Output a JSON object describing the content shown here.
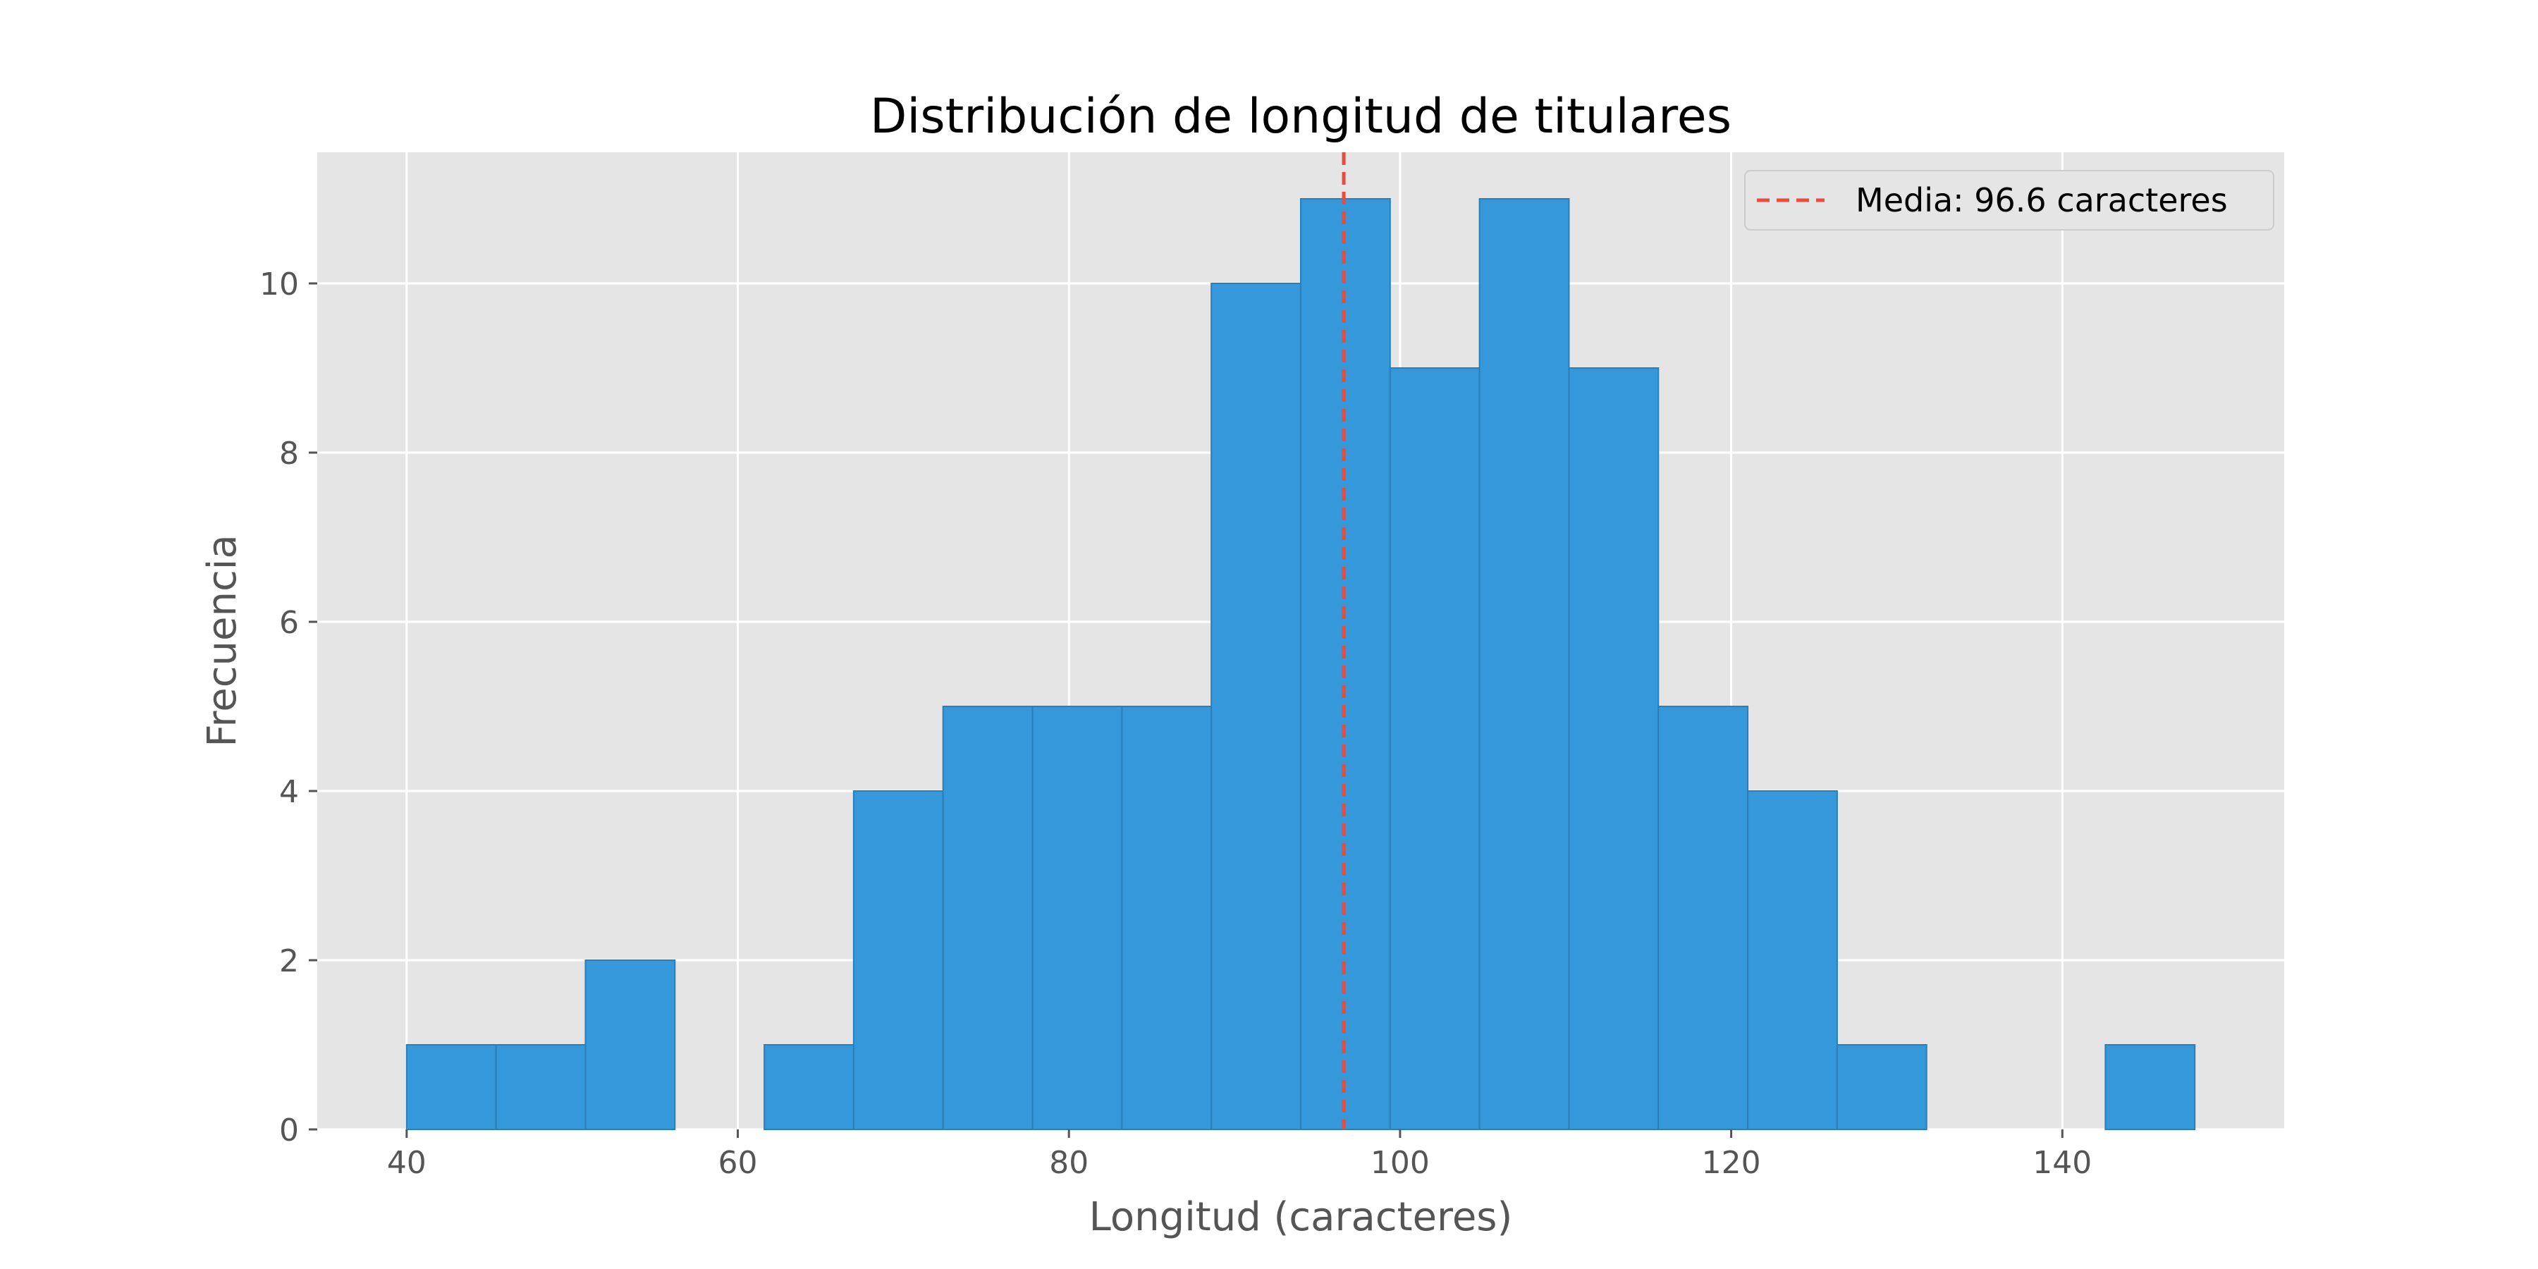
{
  "chart_data": {
    "type": "bar",
    "title": "Distribución de longitud de titulares",
    "xlabel": "Longitud (caracteres)",
    "ylabel": "Frecuencia",
    "xlim": [
      34.6,
      153.4
    ],
    "ylim": [
      0,
      11.55
    ],
    "xticks": [
      40,
      60,
      80,
      100,
      120,
      140
    ],
    "yticks": [
      0,
      2,
      4,
      6,
      8,
      10
    ],
    "grid": true,
    "bins": [
      {
        "start": 40.0,
        "end": 45.4,
        "count": 1
      },
      {
        "start": 45.4,
        "end": 50.8,
        "count": 1
      },
      {
        "start": 50.8,
        "end": 56.2,
        "count": 2
      },
      {
        "start": 56.2,
        "end": 61.6,
        "count": 0
      },
      {
        "start": 61.6,
        "end": 67.0,
        "count": 1
      },
      {
        "start": 67.0,
        "end": 72.4,
        "count": 4
      },
      {
        "start": 72.4,
        "end": 77.8,
        "count": 5
      },
      {
        "start": 77.8,
        "end": 83.2,
        "count": 5
      },
      {
        "start": 83.2,
        "end": 88.6,
        "count": 5
      },
      {
        "start": 88.6,
        "end": 94.0,
        "count": 10
      },
      {
        "start": 94.0,
        "end": 99.4,
        "count": 11
      },
      {
        "start": 99.4,
        "end": 104.8,
        "count": 9
      },
      {
        "start": 104.8,
        "end": 110.2,
        "count": 11
      },
      {
        "start": 110.2,
        "end": 115.6,
        "count": 9
      },
      {
        "start": 115.6,
        "end": 121.0,
        "count": 5
      },
      {
        "start": 121.0,
        "end": 126.4,
        "count": 4
      },
      {
        "start": 126.4,
        "end": 131.8,
        "count": 1
      },
      {
        "start": 131.8,
        "end": 137.2,
        "count": 0
      },
      {
        "start": 137.2,
        "end": 142.6,
        "count": 0
      },
      {
        "start": 142.6,
        "end": 148.0,
        "count": 1
      }
    ],
    "mean_line": {
      "x": 96.6,
      "label": "Media: 96.6 caracteres"
    },
    "legend": "top-right",
    "colors": {
      "bar": "#3498db",
      "bar_edge": "#2a7fb8",
      "mean_line": "#e74c3c",
      "plot_background": "#e5e5e5",
      "grid": "#ffffff"
    }
  }
}
